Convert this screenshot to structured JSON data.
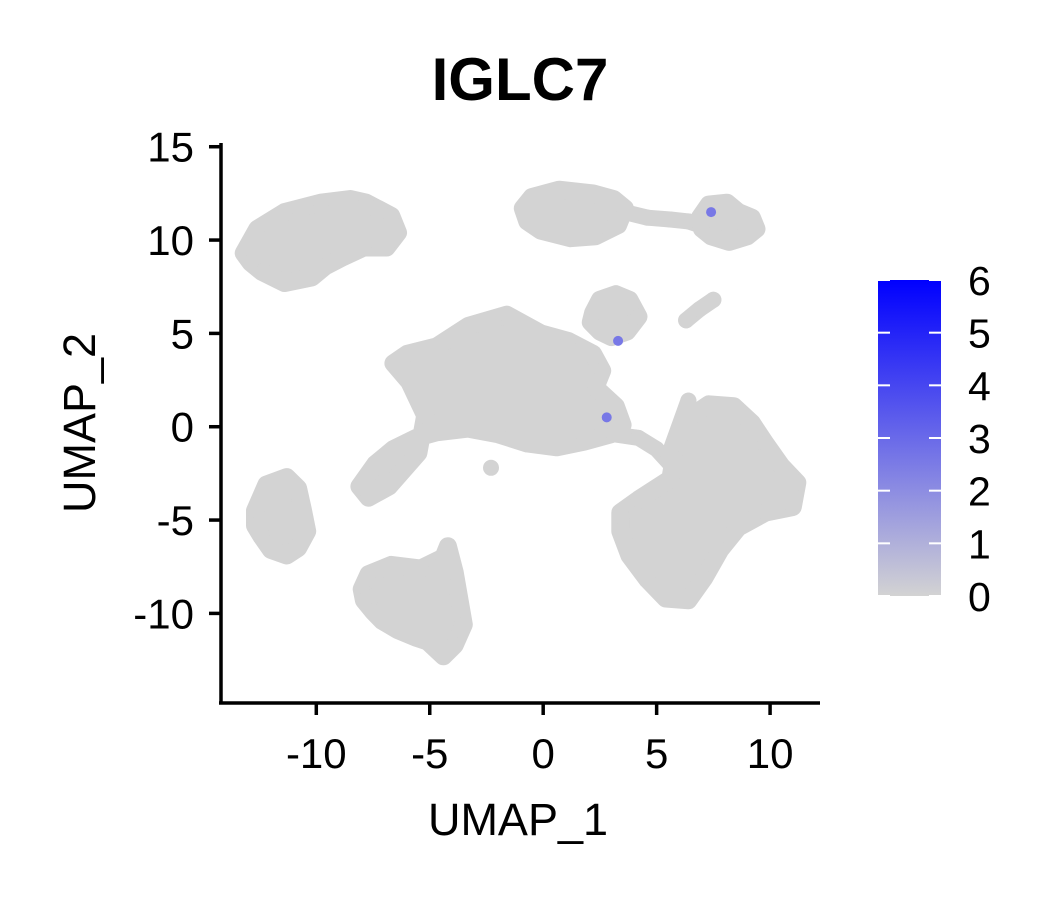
{
  "chart_data": {
    "type": "scatter",
    "title": "IGLC7",
    "xlabel": "UMAP_1",
    "ylabel": "UMAP_2",
    "xlim": [
      -14.2,
      12.2
    ],
    "ylim": [
      -14.8,
      15.2
    ],
    "x_ticks": [
      -10,
      -5,
      0,
      5,
      10
    ],
    "y_ticks": [
      15,
      10,
      5,
      0,
      -5,
      -10
    ],
    "x_tick_labels": [
      "-10",
      "-5",
      "0",
      "5",
      "10"
    ],
    "y_tick_labels": [
      "15",
      "10",
      "5",
      "0",
      "-5",
      "-10"
    ],
    "grid": false,
    "point_color_low": "#d3d3d3",
    "point_color_high": "#0000ff",
    "legend": {
      "type": "colorbar",
      "placement": "right",
      "min": 0,
      "max": 6,
      "ticks": [
        0,
        1,
        2,
        3,
        4,
        5,
        6
      ],
      "tick_labels": [
        "0",
        "1",
        "2",
        "3",
        "4",
        "5",
        "6"
      ]
    },
    "clusters": [
      {
        "cluster": "upper-left",
        "x": [
          -13.2,
          -12.6,
          -11.4,
          -9.8,
          -8.5,
          -7.8,
          -6.7,
          -6.4,
          -6.9,
          -7.9,
          -8.8,
          -9.6,
          -10.2,
          -11.4,
          -12.4,
          -12.9
        ],
        "y": [
          9.3,
          10.6,
          11.5,
          12.0,
          12.2,
          12.0,
          11.3,
          10.4,
          9.6,
          9.6,
          9.1,
          8.6,
          8.0,
          7.7,
          8.3,
          8.8
        ],
        "expression": 0
      },
      {
        "cluster": "upper-right-left-lobe",
        "x": [
          -0.9,
          -0.5,
          0.7,
          2.2,
          3.1,
          3.6,
          3.3,
          2.3,
          1.2,
          -0.1,
          -0.7
        ],
        "y": [
          11.7,
          12.3,
          12.7,
          12.5,
          12.2,
          11.7,
          10.8,
          10.2,
          10.1,
          10.5,
          11.0
        ],
        "expression": 0
      },
      {
        "cluster": "upper-right-bridge",
        "x": [
          3.6,
          4.6,
          5.6,
          6.4,
          6.9
        ],
        "y": [
          11.5,
          11.2,
          11.1,
          11.0,
          10.8
        ],
        "expression": 0
      },
      {
        "cluster": "upper-right-right-lobe",
        "x": [
          6.9,
          7.3,
          8.1,
          8.6,
          9.2,
          9.4,
          9.0,
          8.2,
          7.4,
          7.0
        ],
        "y": [
          11.2,
          11.9,
          12.0,
          11.5,
          11.2,
          10.6,
          10.2,
          9.9,
          10.2,
          10.6
        ],
        "expression": 0
      },
      {
        "cluster": "upper-right-diagonal",
        "x": [
          6.3,
          6.9,
          7.5
        ],
        "y": [
          5.7,
          6.3,
          6.8
        ],
        "expression": 0
      },
      {
        "cluster": "center-small",
        "x": [
          2.2,
          2.5,
          3.2,
          3.8,
          4.2,
          3.7,
          3.0,
          2.5,
          2.1
        ],
        "y": [
          6.1,
          6.8,
          7.1,
          6.8,
          5.9,
          5.1,
          4.8,
          5.1,
          5.6
        ],
        "expression": 0
      },
      {
        "cluster": "center-large",
        "x": [
          -6.6,
          -6.0,
          -4.7,
          -3.3,
          -1.6,
          -0.1,
          1.1,
          2.2,
          2.6,
          2.3,
          3.2,
          3.5,
          3.0,
          1.8,
          0.6,
          -0.7,
          -2.0,
          -3.3,
          -4.7,
          -5.6,
          -6.6,
          -7.4,
          -8.1,
          -7.7,
          -6.8,
          -5.5,
          -5.2,
          -5.9
        ],
        "y": [
          3.4,
          3.9,
          4.3,
          5.4,
          6.0,
          5.0,
          4.6,
          3.9,
          3.0,
          2.1,
          1.1,
          0.1,
          -0.4,
          -0.8,
          -1.1,
          -0.9,
          -0.4,
          -0.1,
          -0.3,
          -0.6,
          -1.2,
          -2.0,
          -3.2,
          -3.8,
          -3.2,
          -1.4,
          0.6,
          2.4
        ],
        "expression": 0
      },
      {
        "cluster": "center-stray",
        "x": [
          -2.3
        ],
        "y": [
          -2.2
        ],
        "expression": 0
      },
      {
        "cluster": "center-right-arm",
        "x": [
          3.1,
          4.2,
          5.0,
          5.6
        ],
        "y": [
          -0.4,
          -0.6,
          -1.2,
          -2.0
        ],
        "expression": 0
      },
      {
        "cluster": "left",
        "x": [
          -12.7,
          -12.2,
          -11.3,
          -10.8,
          -10.6,
          -10.4,
          -10.8,
          -11.3,
          -12.0,
          -12.4,
          -12.7
        ],
        "y": [
          -4.5,
          -3.1,
          -2.7,
          -3.3,
          -4.4,
          -5.6,
          -6.5,
          -6.9,
          -6.6,
          -5.9,
          -5.3
        ],
        "expression": 0
      },
      {
        "cluster": "bottom",
        "x": [
          -8.0,
          -7.7,
          -6.7,
          -5.4,
          -4.4,
          -4.2,
          -3.9,
          -3.5,
          -3.9,
          -4.4,
          -5.1,
          -5.6,
          -6.4,
          -7.1,
          -7.5,
          -7.9
        ],
        "y": [
          -8.7,
          -7.9,
          -7.4,
          -7.6,
          -7.0,
          -6.4,
          -7.8,
          -10.6,
          -11.7,
          -12.3,
          -11.5,
          -11.3,
          -10.9,
          -10.4,
          -9.9,
          -9.3
        ],
        "expression": 0
      },
      {
        "cluster": "right-large",
        "x": [
          3.4,
          4.2,
          5.6,
          5.8,
          6.2,
          7.3,
          8.4,
          9.2,
          9.8,
          10.5,
          11.2,
          11.0,
          9.8,
          8.6,
          7.8,
          7.1,
          6.4,
          5.4,
          4.6,
          3.8,
          3.4
        ],
        "y": [
          -4.6,
          -3.9,
          -2.8,
          -1.4,
          0.3,
          1.2,
          1.1,
          0.2,
          -0.9,
          -2.1,
          -3.0,
          -4.3,
          -4.6,
          -5.4,
          -6.6,
          -8.1,
          -9.3,
          -9.2,
          -8.2,
          -6.9,
          -5.6
        ],
        "expression": 0
      },
      {
        "cluster": "right-stray",
        "x": [
          5.6,
          6.4
        ],
        "y": [
          -1.3,
          1.4
        ],
        "expression": 0
      },
      {
        "cluster": "expressing-cells",
        "x": [
          7.4,
          3.3,
          2.8
        ],
        "y": [
          11.5,
          4.6,
          0.5
        ],
        "expression": 2.6
      }
    ]
  }
}
